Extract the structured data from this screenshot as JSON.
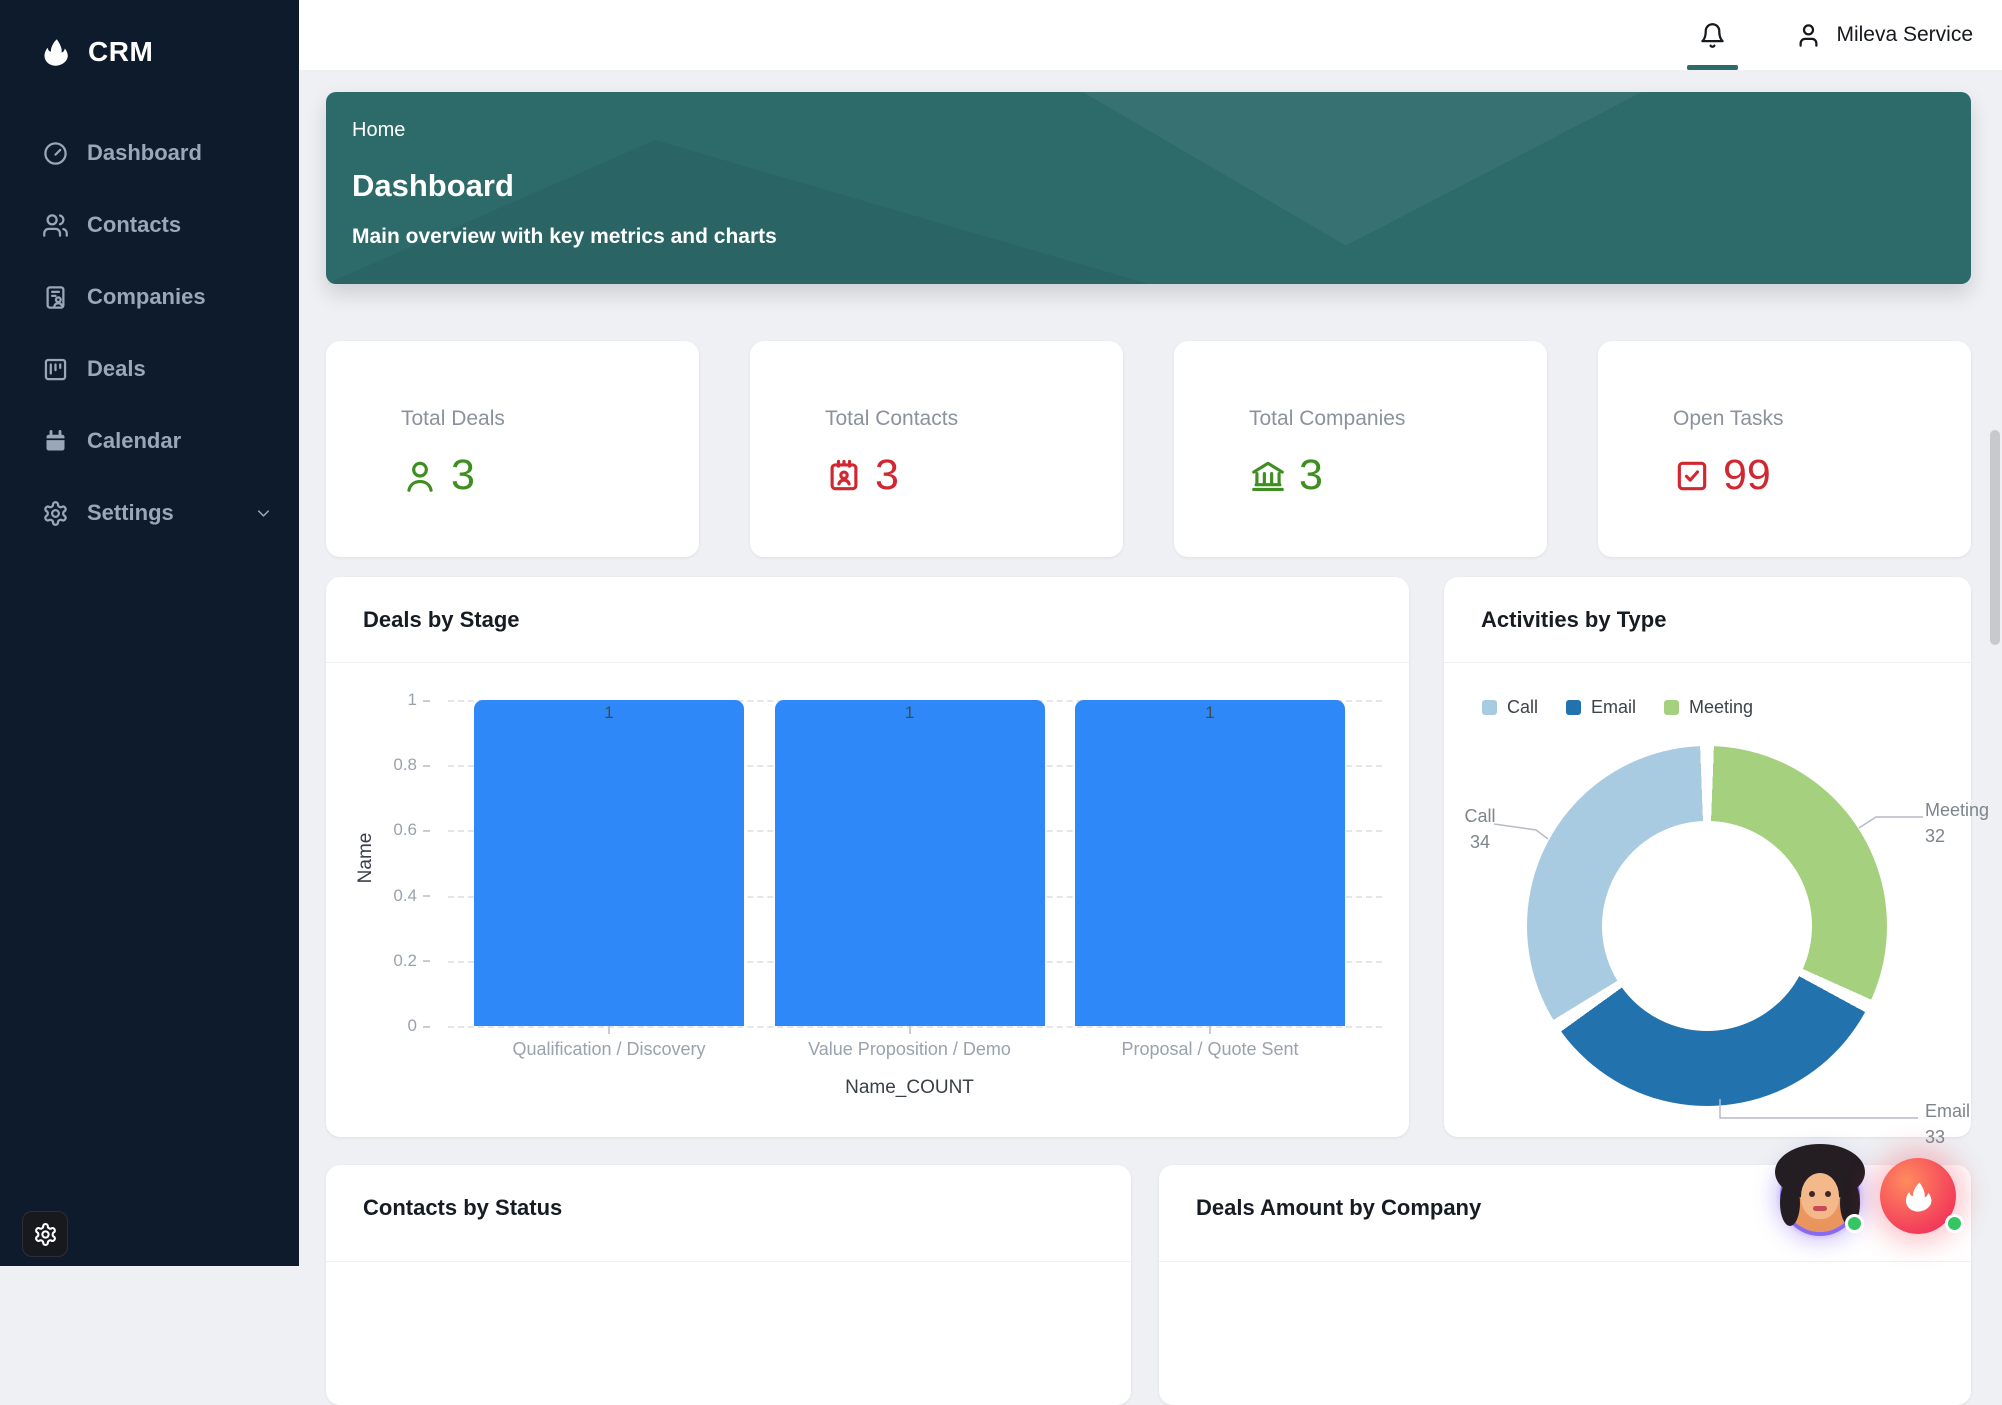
{
  "app": {
    "name": "CRM",
    "logo_icon": "flame-icon"
  },
  "sidebar": {
    "items": [
      {
        "label": "Dashboard",
        "icon": "gauge-icon"
      },
      {
        "label": "Contacts",
        "icon": "users-icon"
      },
      {
        "label": "Companies",
        "icon": "file-user-icon"
      },
      {
        "label": "Deals",
        "icon": "kanban-icon"
      },
      {
        "label": "Calendar",
        "icon": "calendar-icon"
      },
      {
        "label": "Settings",
        "icon": "gear-icon",
        "has_submenu": true
      }
    ]
  },
  "header": {
    "user_name": "Mileva Service",
    "icons": [
      "bell-icon",
      "user-icon"
    ]
  },
  "hero": {
    "breadcrumb": "Home",
    "title": "Dashboard",
    "subtitle": "Main overview with key metrics and charts"
  },
  "metrics": [
    {
      "label": "Total Deals",
      "value": "3",
      "color": "#3e8e20",
      "icon": "person-icon"
    },
    {
      "label": "Total Contacts",
      "value": "3",
      "color": "#d12731",
      "icon": "contact-calendar-icon"
    },
    {
      "label": "Total Companies",
      "value": "3",
      "color": "#3e8e20",
      "icon": "bank-icon"
    },
    {
      "label": "Open Tasks",
      "value": "99",
      "color": "#d12731",
      "icon": "checkbox-check-icon"
    }
  ],
  "cards": {
    "deals_by_stage_title": "Deals by Stage",
    "activities_by_type_title": "Activities by Type",
    "contacts_by_status_title": "Contacts by Status",
    "deals_amount_by_company_title": "Deals Amount by Company"
  },
  "chart_data": [
    {
      "type": "bar",
      "title": "Deals by Stage",
      "categories": [
        "Qualification / Discovery",
        "Value Proposition / Demo",
        "Proposal / Quote Sent"
      ],
      "values": [
        1,
        1,
        1
      ],
      "xlabel": "Name_COUNT",
      "ylabel": "Name",
      "yticks": [
        1,
        0.8,
        0.6,
        0.4,
        0.2,
        0
      ],
      "ylim": [
        0,
        1
      ],
      "bar_color": "#2f88f8",
      "grid": "horizontal-dashed",
      "value_labels": true
    },
    {
      "type": "pie",
      "title": "Activities by Type",
      "donut": true,
      "legend_position": "top-left",
      "segments": [
        {
          "name": "Call",
          "value": 34,
          "color": "#a9cbe2"
        },
        {
          "name": "Email",
          "value": 33,
          "color": "#2272ae"
        },
        {
          "name": "Meeting",
          "value": 32,
          "color": "#a5d07e"
        }
      ],
      "draw_order_clockwise_from_top": [
        "Meeting",
        "Email",
        "Call"
      ],
      "callouts": [
        {
          "name": "Call",
          "value": "34"
        },
        {
          "name": "Meeting",
          "value": "32"
        },
        {
          "name": "Email",
          "value": "33"
        }
      ]
    }
  ],
  "theme": {
    "sidebar_bg": "#0d1b2d",
    "hero_bg": "#2d6a6a",
    "header_accent": "#2d6a6a",
    "positive": "#3e8e20",
    "negative": "#d12731",
    "bar_blue": "#2f88f8",
    "page_bg": "#eef0f3",
    "status_dot_green": "#35c663"
  }
}
